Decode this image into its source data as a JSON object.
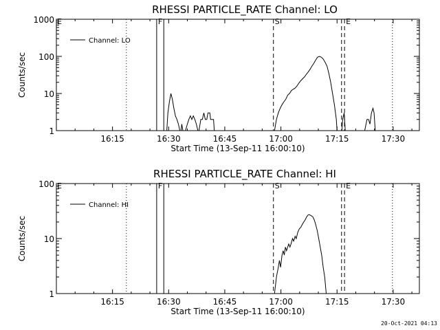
{
  "chart_data": [
    {
      "type": "line",
      "title": "RHESSI PARTICLE_RATE Channel: LO",
      "xlabel": "Start Time (13-Sep-11 16:00:10)",
      "ylabel": "Counts/sec",
      "yscale": "log",
      "ylim": [
        1,
        1000
      ],
      "xlim_minutes": [
        0,
        97
      ],
      "x_ticks": [
        {
          "t": 15,
          "label": "16:15"
        },
        {
          "t": 30,
          "label": "16:30"
        },
        {
          "t": 45,
          "label": "16:45"
        },
        {
          "t": 60,
          "label": "17:00"
        },
        {
          "t": 75,
          "label": "17:15"
        },
        {
          "t": 90,
          "label": "17:30"
        }
      ],
      "y_ticks": [
        {
          "v": 1,
          "label": "1"
        },
        {
          "v": 10,
          "label": "10"
        },
        {
          "v": 100,
          "label": "100"
        },
        {
          "v": 1000,
          "label": "1000"
        }
      ],
      "legend": {
        "label": "Channel: LO",
        "placement": "top-left"
      },
      "series": [
        {
          "segments": [
            [
              [
                29.5,
                1
              ],
              [
                29.8,
                3
              ],
              [
                30.2,
                6
              ],
              [
                30.6,
                10
              ],
              [
                31.0,
                7
              ],
              [
                31.4,
                4
              ],
              [
                31.8,
                2.5
              ],
              [
                32.2,
                2
              ],
              [
                32.6,
                1.5
              ],
              [
                33,
                1
              ]
            ],
            [
              [
                33.3,
                1
              ],
              [
                33.5,
                1.5
              ],
              [
                33.8,
                1
              ]
            ],
            [
              [
                34.5,
                1
              ],
              [
                35,
                1.5
              ],
              [
                35.4,
                2
              ],
              [
                35.8,
                2.5
              ],
              [
                36.2,
                2
              ],
              [
                36.6,
                2.5
              ],
              [
                37.0,
                2
              ],
              [
                37.4,
                1.5
              ],
              [
                37.8,
                1
              ]
            ],
            [
              [
                38.1,
                1
              ],
              [
                38.6,
                2
              ],
              [
                39,
                2
              ],
              [
                39.4,
                3
              ],
              [
                39.8,
                2
              ],
              [
                40.2,
                2
              ],
              [
                40.5,
                3
              ],
              [
                41,
                3
              ],
              [
                41.2,
                2
              ],
              [
                41.6,
                2
              ],
              [
                42.0,
                2
              ],
              [
                42.2,
                1
              ]
            ],
            [
              [
                58.3,
                1
              ],
              [
                58.8,
                2
              ],
              [
                59.3,
                3
              ],
              [
                59.8,
                4
              ],
              [
                60.3,
                5
              ],
              [
                60.8,
                6
              ],
              [
                61.3,
                7
              ],
              [
                61.8,
                9
              ],
              [
                62.3,
                10
              ],
              [
                62.8,
                12
              ],
              [
                63.3,
                13
              ],
              [
                63.8,
                14
              ],
              [
                64.3,
                16
              ],
              [
                64.8,
                19
              ],
              [
                65.3,
                22
              ],
              [
                65.8,
                25
              ],
              [
                66.3,
                28
              ],
              [
                66.8,
                33
              ],
              [
                67.3,
                38
              ],
              [
                67.8,
                45
              ],
              [
                68.3,
                55
              ],
              [
                68.8,
                65
              ],
              [
                69.3,
                80
              ],
              [
                69.8,
                95
              ],
              [
                70.3,
                100
              ],
              [
                70.8,
                95
              ],
              [
                71.3,
                85
              ],
              [
                71.8,
                70
              ],
              [
                72.3,
                55
              ],
              [
                72.8,
                35
              ],
              [
                73.3,
                20
              ],
              [
                73.8,
                10
              ],
              [
                74.3,
                5
              ],
              [
                74.8,
                2
              ],
              [
                75.0,
                1
              ]
            ],
            [
              [
                76.3,
                1
              ],
              [
                76.5,
                2
              ],
              [
                76.9,
                3
              ],
              [
                77.2,
                1
              ]
            ],
            [
              [
                82.4,
                1
              ],
              [
                83.0,
                2
              ],
              [
                83.4,
                2
              ],
              [
                83.8,
                1.5
              ],
              [
                84.2,
                3
              ],
              [
                84.6,
                4
              ],
              [
                84.9,
                3
              ],
              [
                85.2,
                1
              ]
            ]
          ]
        }
      ],
      "markers": [
        {
          "t": 18.7,
          "label": "",
          "style": "dotted"
        },
        {
          "t": 26.8,
          "label": "F",
          "style": "solid"
        },
        {
          "t": 28.7,
          "label": "",
          "style": "solid"
        },
        {
          "t": 58.0,
          "label": "S",
          "style": "dashed"
        },
        {
          "t": 76.2,
          "label": "",
          "style": "dashed"
        },
        {
          "t": 77.0,
          "label": "E",
          "style": "dashed"
        },
        {
          "t": 89.8,
          "label": "",
          "style": "dotted"
        }
      ],
      "corner_label": "E"
    },
    {
      "type": "line",
      "title": "RHESSI PARTICLE_RATE Channel: HI",
      "xlabel": "Start Time (13-Sep-11 16:00:10)",
      "ylabel": "Counts/sec",
      "yscale": "log",
      "ylim": [
        1,
        100
      ],
      "xlim_minutes": [
        0,
        97
      ],
      "x_ticks": [
        {
          "t": 15,
          "label": "16:15"
        },
        {
          "t": 30,
          "label": "16:30"
        },
        {
          "t": 45,
          "label": "16:45"
        },
        {
          "t": 60,
          "label": "17:00"
        },
        {
          "t": 75,
          "label": "17:15"
        },
        {
          "t": 90,
          "label": "17:30"
        }
      ],
      "y_ticks": [
        {
          "v": 1,
          "label": "1"
        },
        {
          "v": 10,
          "label": "10"
        },
        {
          "v": 100,
          "label": "100"
        }
      ],
      "legend": {
        "label": "Channel: HI",
        "placement": "top-left"
      },
      "series": [
        {
          "segments": [
            [
              [
                58.3,
                1
              ],
              [
                58.8,
                2
              ],
              [
                59.3,
                3
              ],
              [
                59.6,
                4
              ],
              [
                59.9,
                3
              ],
              [
                60.3,
                5
              ],
              [
                60.6,
                6
              ],
              [
                60.9,
                5
              ],
              [
                61.2,
                7
              ],
              [
                61.5,
                6
              ],
              [
                61.8,
                7
              ],
              [
                62.1,
                8
              ],
              [
                62.4,
                7
              ],
              [
                62.7,
                8
              ],
              [
                63.1,
                10
              ],
              [
                63.4,
                9
              ],
              [
                63.8,
                11
              ],
              [
                64.1,
                10
              ],
              [
                64.5,
                13
              ],
              [
                64.9,
                15
              ],
              [
                65.3,
                16
              ],
              [
                65.7,
                18
              ],
              [
                66.1,
                20
              ],
              [
                66.5,
                22
              ],
              [
                66.9,
                25
              ],
              [
                67.3,
                27
              ],
              [
                67.7,
                27
              ],
              [
                68.1,
                26
              ],
              [
                68.5,
                25
              ],
              [
                68.9,
                22
              ],
              [
                69.3,
                18
              ],
              [
                69.7,
                14
              ],
              [
                70.1,
                10
              ],
              [
                70.5,
                7
              ],
              [
                70.9,
                5
              ],
              [
                71.3,
                3
              ],
              [
                71.7,
                2
              ],
              [
                72.1,
                1
              ]
            ]
          ]
        }
      ],
      "markers": [
        {
          "t": 18.7,
          "label": "",
          "style": "dotted"
        },
        {
          "t": 26.8,
          "label": "F",
          "style": "solid"
        },
        {
          "t": 28.7,
          "label": "",
          "style": "solid"
        },
        {
          "t": 58.0,
          "label": "S",
          "style": "dashed"
        },
        {
          "t": 76.2,
          "label": "",
          "style": "dashed"
        },
        {
          "t": 77.0,
          "label": "E",
          "style": "dashed"
        },
        {
          "t": 89.8,
          "label": "",
          "style": "dotted"
        }
      ],
      "corner_label": "E"
    }
  ],
  "footer": {
    "timestamp": "20-Oct-2021 04:13"
  }
}
